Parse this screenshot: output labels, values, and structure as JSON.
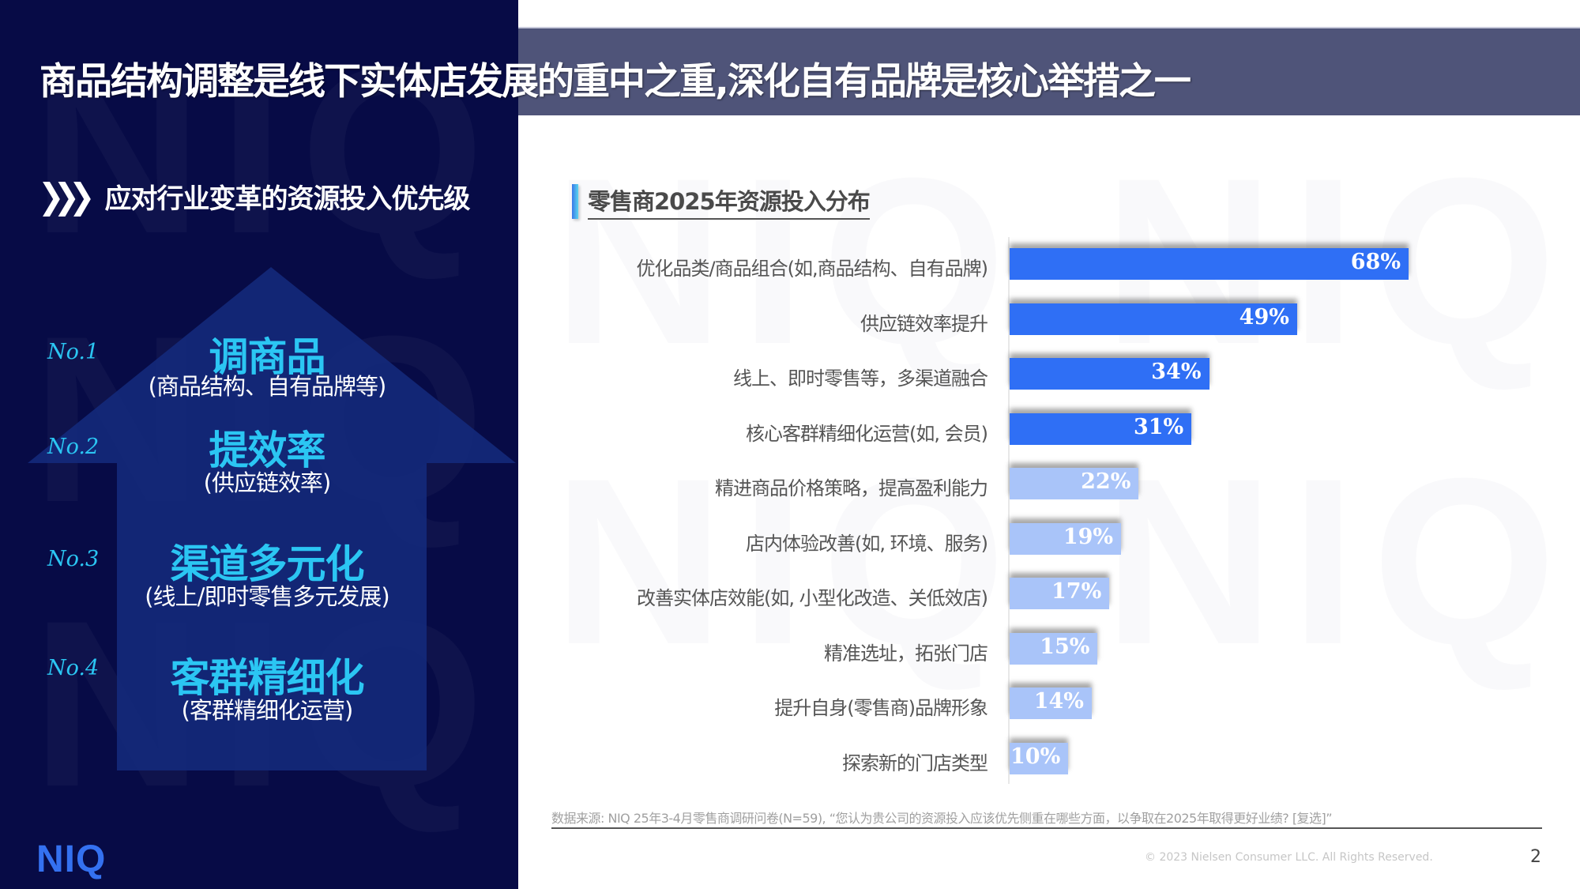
{
  "header": {
    "title": "商品结构调整是线下实体店发展的重中之重,深化自有品牌是核心举措之一"
  },
  "left_panel": {
    "section_title": "应对行业变革的资源投入优先级",
    "section_icon": "triple-chevron-right-icon",
    "priorities": [
      {
        "rank": "No.1",
        "title": "调商品",
        "subtitle": "(商品结构、自有品牌等)"
      },
      {
        "rank": "No.2",
        "title": "提效率",
        "subtitle": "(供应链效率)"
      },
      {
        "rank": "No.3",
        "title": "渠道多元化",
        "subtitle": "(线上/即时零售多元发展)"
      },
      {
        "rank": "No.4",
        "title": "客群精细化",
        "subtitle": "(客群精细化运营)"
      }
    ],
    "logo": "NIQ"
  },
  "chart": {
    "title": "零售商2025年资源投入分布"
  },
  "colors": {
    "dark_navy": "#070b46",
    "arrow_blue": "#13297a",
    "accent_cyan": "#2bc6f3",
    "bar_dark": "#2f6ff5",
    "bar_light": "#a9c4f9",
    "title_band": "#4f5479"
  },
  "chart_data": {
    "type": "bar",
    "orientation": "horizontal",
    "title": "零售商2025年资源投入分布",
    "xlabel": "",
    "ylabel": "",
    "xlim": [
      0,
      100
    ],
    "grid": false,
    "legend": null,
    "categories": [
      "优化品类/商品组合(如,商品结构、自有品牌)",
      "供应链效率提升",
      "线上、即时零售等，多渠道融合",
      "核心客群精细化运营(如, 会员)",
      "精进商品价格策略，提高盈利能力",
      "店内体验改善(如, 环境、服务)",
      "改善实体店效能(如, 小型化改造、关低效店)",
      "精准选址，拓张门店",
      "提升自身(零售商)品牌形象",
      "探索新的门店类型"
    ],
    "values": [
      68,
      49,
      34,
      31,
      22,
      19,
      17,
      15,
      14,
      10
    ],
    "value_labels": [
      "68%",
      "49%",
      "34%",
      "31%",
      "22%",
      "19%",
      "17%",
      "15%",
      "14%",
      "10%"
    ],
    "highlight_top_n": 4
  },
  "footer": {
    "source": "数据来源: NIQ 25年3-4月零售商调研问卷(N=59), “您认为贵公司的资源投入应该优先侧重在哪些方面，以争取在2025年取得更好业绩? [复选]”",
    "copyright": "© 2023 Nielsen Consumer LLC. All Rights Reserved.",
    "page_number": "2"
  }
}
